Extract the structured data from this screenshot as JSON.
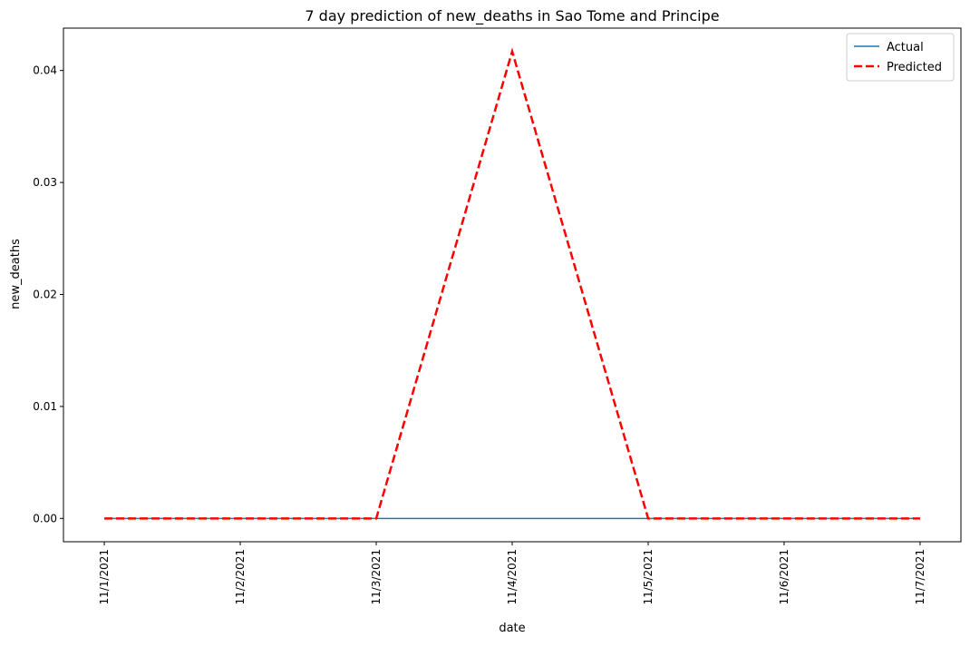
{
  "chart_data": {
    "type": "line",
    "title": "7 day prediction of new_deaths in Sao Tome and Principe",
    "xlabel": "date",
    "ylabel": "new_deaths",
    "categories": [
      "11/1/2021",
      "11/2/2021",
      "11/3/2021",
      "11/4/2021",
      "11/5/2021",
      "11/6/2021",
      "11/7/2021"
    ],
    "series": [
      {
        "name": "Actual",
        "values": [
          0,
          0,
          0,
          0,
          0,
          0,
          0
        ],
        "color": "#1f77b4",
        "style": "solid"
      },
      {
        "name": "Predicted",
        "values": [
          0,
          0,
          0,
          0.0417,
          0,
          0,
          0
        ],
        "color": "#ff0000",
        "style": "dashed"
      }
    ],
    "y_ticks": [
      "0.00",
      "0.01",
      "0.02",
      "0.03",
      "0.04"
    ],
    "y_tick_values": [
      0,
      0.01,
      0.02,
      0.03,
      0.04
    ],
    "ylim": [
      -0.00208,
      0.04378
    ],
    "grid": false,
    "legend_position": "top-right"
  }
}
